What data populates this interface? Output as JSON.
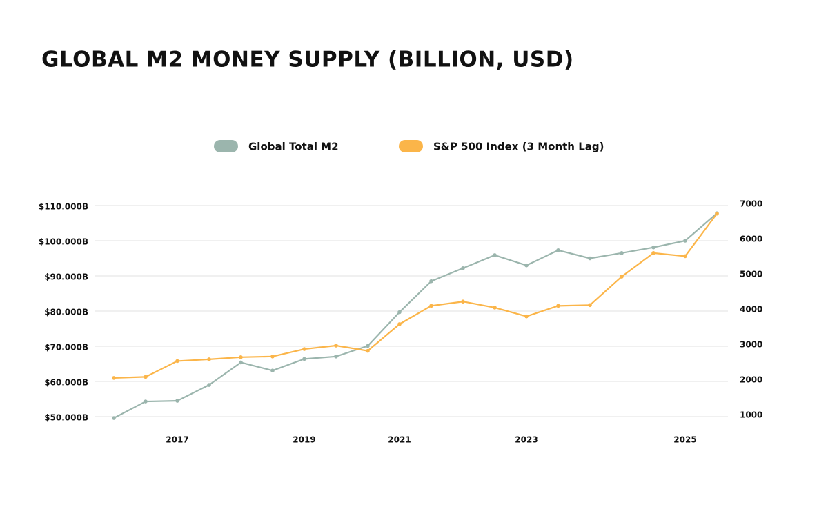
{
  "chart_data": {
    "type": "line",
    "title": "GLOBAL M2 MONEY SUPPLY (BILLION, USD)",
    "categories": [
      null,
      null,
      "2017",
      null,
      null,
      null,
      "2019",
      null,
      null,
      "2021",
      null,
      null,
      null,
      "2023",
      null,
      null,
      null,
      null,
      "2025",
      null
    ],
    "series": [
      {
        "name": "Global Total M2",
        "color": "#9bb5ad",
        "axis": "y",
        "values": [
          49600,
          54300,
          54500,
          59000,
          65400,
          63100,
          66400,
          67100,
          70100,
          79700,
          88500,
          92200,
          95900,
          93000,
          97300,
          95000,
          96500,
          98100,
          100000,
          107800
        ]
      },
      {
        "name": "S&P 500 Index (3 Month Lag)",
        "color": "#fbb549",
        "axis": "y2",
        "values": [
          2100,
          2130,
          2580,
          2630,
          2690,
          2710,
          2920,
          3020,
          2870,
          3630,
          4150,
          4270,
          4100,
          3850,
          4150,
          4170,
          4980,
          5650,
          5560,
          6770
        ]
      }
    ],
    "ylim": [
      50000,
      110000
    ],
    "yticks": [
      {
        "value": 50000,
        "label": "$50.000B"
      },
      {
        "value": 60000,
        "label": "$60.000B"
      },
      {
        "value": 70000,
        "label": "$70.000B"
      },
      {
        "value": 80000,
        "label": "$80.000B"
      },
      {
        "value": 90000,
        "label": "$90.000B"
      },
      {
        "value": 100000,
        "label": "$100.000B"
      },
      {
        "value": 110000,
        "label": "$110.000B"
      }
    ],
    "y2lim": [
      1000,
      7000
    ],
    "y2ticks": [
      1000,
      2000,
      3000,
      4000,
      5000,
      6000,
      7000
    ],
    "grid": true
  }
}
